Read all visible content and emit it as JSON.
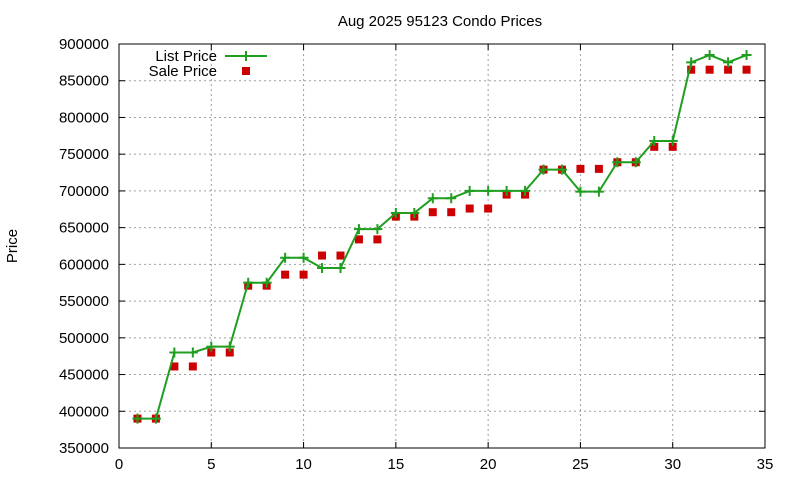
{
  "chart_data": {
    "type": "line",
    "title": "Aug 2025 95123 Condo Prices",
    "xlabel": "",
    "ylabel": "Price",
    "xlim": [
      0,
      35
    ],
    "ylim": [
      350000,
      900000
    ],
    "x_ticks": [
      0,
      5,
      10,
      15,
      20,
      25,
      30,
      35
    ],
    "y_ticks": [
      350000,
      400000,
      450000,
      500000,
      550000,
      600000,
      650000,
      700000,
      750000,
      800000,
      850000,
      900000
    ],
    "grid": true,
    "legend_position": "top-left",
    "series": [
      {
        "name": "List Price",
        "style": "line-with-plus-markers",
        "color": "#1f9e1f",
        "x": [
          1,
          2,
          3,
          4,
          5,
          6,
          7,
          8,
          9,
          10,
          11,
          12,
          13,
          14,
          15,
          16,
          17,
          18,
          19,
          20,
          21,
          22,
          23,
          24,
          25,
          26,
          27,
          28,
          29,
          30,
          31,
          32,
          33,
          34
        ],
        "values": [
          390000,
          390000,
          480000,
          480000,
          488000,
          488000,
          575000,
          575000,
          609000,
          609000,
          595000,
          595000,
          648000,
          648000,
          670000,
          670000,
          690000,
          690000,
          700000,
          700000,
          700000,
          700000,
          729000,
          729000,
          699000,
          699000,
          739000,
          739000,
          768000,
          768000,
          875000,
          885000,
          875000,
          885000
        ]
      },
      {
        "name": "Sale Price",
        "style": "square-markers",
        "color": "#cc0000",
        "x": [
          1,
          2,
          3,
          4,
          5,
          6,
          7,
          8,
          9,
          10,
          11,
          12,
          13,
          14,
          15,
          16,
          17,
          18,
          19,
          20,
          21,
          22,
          23,
          24,
          25,
          26,
          27,
          28,
          29,
          30,
          31,
          32,
          33,
          34
        ],
        "values": [
          390000,
          390000,
          461000,
          461000,
          480000,
          480000,
          571000,
          571000,
          586000,
          586000,
          612000,
          612000,
          634000,
          634000,
          665000,
          665000,
          671000,
          671000,
          676000,
          676000,
          695000,
          695000,
          729000,
          729000,
          730000,
          730000,
          739000,
          739000,
          760000,
          760000,
          865000,
          865000,
          865000,
          865000
        ]
      }
    ]
  }
}
